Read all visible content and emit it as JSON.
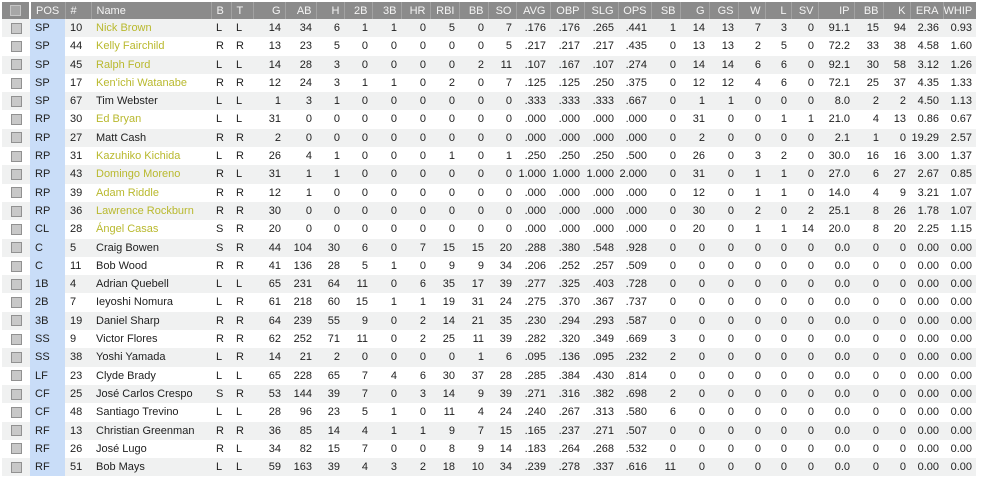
{
  "colors": {
    "header_bg": "#8b8b8b",
    "header_text": "#f4f4f4",
    "pos_column_bg": "#c9ddf8",
    "row_alt_bg": "#f0f1f1",
    "name_highlight_yellow": "#b9b92e"
  },
  "table": {
    "columns": [
      {
        "key": "sel",
        "label": "",
        "align": "center",
        "width": 28,
        "type": "checkbox"
      },
      {
        "key": "pos",
        "label": "POS",
        "align": "left",
        "width": 35
      },
      {
        "key": "num",
        "label": "#",
        "align": "left",
        "width": 26
      },
      {
        "key": "name",
        "label": "Name",
        "align": "left",
        "width": 120
      },
      {
        "key": "b",
        "label": "B",
        "align": "left",
        "width": 20
      },
      {
        "key": "t",
        "label": "T",
        "align": "left",
        "width": 22
      },
      {
        "key": "g",
        "label": "G",
        "align": "right",
        "width": 32
      },
      {
        "key": "ab",
        "label": "AB",
        "align": "right",
        "width": 31
      },
      {
        "key": "h",
        "label": "H",
        "align": "right",
        "width": 28
      },
      {
        "key": "2b",
        "label": "2B",
        "align": "right",
        "width": 28
      },
      {
        "key": "3b",
        "label": "3B",
        "align": "right",
        "width": 29
      },
      {
        "key": "hr",
        "label": "HR",
        "align": "right",
        "width": 29
      },
      {
        "key": "rbi",
        "label": "RBI",
        "align": "right",
        "width": 29
      },
      {
        "key": "bb",
        "label": "BB",
        "align": "right",
        "width": 29
      },
      {
        "key": "so",
        "label": "SO",
        "align": "right",
        "width": 28
      },
      {
        "key": "avg",
        "label": "AVG",
        "align": "right",
        "width": 34
      },
      {
        "key": "obp",
        "label": "OBP",
        "align": "right",
        "width": 34
      },
      {
        "key": "slg",
        "label": "SLG",
        "align": "right",
        "width": 34
      },
      {
        "key": "ops",
        "label": "OPS",
        "align": "right",
        "width": 33
      },
      {
        "key": "sb",
        "label": "SB",
        "align": "right",
        "width": 29
      },
      {
        "key": "g2",
        "label": "G",
        "align": "right",
        "width": 29
      },
      {
        "key": "gs",
        "label": "GS",
        "align": "right",
        "width": 29
      },
      {
        "key": "w",
        "label": "W",
        "align": "right",
        "width": 27
      },
      {
        "key": "l",
        "label": "L",
        "align": "right",
        "width": 26
      },
      {
        "key": "sv",
        "label": "SV",
        "align": "right",
        "width": 27
      },
      {
        "key": "ip",
        "label": "IP",
        "align": "right",
        "width": 36
      },
      {
        "key": "bb2",
        "label": "BB",
        "align": "right",
        "width": 29
      },
      {
        "key": "k",
        "label": "K",
        "align": "right",
        "width": 27
      },
      {
        "key": "era",
        "label": "ERA",
        "align": "right",
        "width": 33
      },
      {
        "key": "whip",
        "label": "WHIP",
        "align": "right",
        "width": 33
      }
    ],
    "rows": [
      {
        "pos": "SP",
        "num": "10",
        "name": "Nick Brown",
        "highlighted": true,
        "stats": [
          "L",
          "L",
          "14",
          "34",
          "6",
          "1",
          "1",
          "0",
          "5",
          "0",
          "7",
          ".176",
          ".176",
          ".265",
          ".441",
          "1",
          "14",
          "13",
          "7",
          "3",
          "0",
          "91.1",
          "15",
          "94",
          "2.36",
          "0.93"
        ]
      },
      {
        "pos": "SP",
        "num": "44",
        "name": "Kelly Fairchild",
        "highlighted": true,
        "stats": [
          "R",
          "R",
          "13",
          "23",
          "5",
          "0",
          "0",
          "0",
          "0",
          "0",
          "5",
          ".217",
          ".217",
          ".217",
          ".435",
          "0",
          "13",
          "13",
          "2",
          "5",
          "0",
          "72.2",
          "33",
          "38",
          "4.58",
          "1.60"
        ]
      },
      {
        "pos": "SP",
        "num": "45",
        "name": "Ralph Ford",
        "highlighted": true,
        "stats": [
          "L",
          "L",
          "14",
          "28",
          "3",
          "0",
          "0",
          "0",
          "0",
          "2",
          "11",
          ".107",
          ".167",
          ".107",
          ".274",
          "0",
          "14",
          "14",
          "6",
          "6",
          "0",
          "92.1",
          "30",
          "58",
          "3.12",
          "1.26"
        ]
      },
      {
        "pos": "SP",
        "num": "17",
        "name": "Ken'ichi Watanabe",
        "highlighted": true,
        "stats": [
          "R",
          "R",
          "12",
          "24",
          "3",
          "1",
          "1",
          "0",
          "2",
          "0",
          "7",
          ".125",
          ".125",
          ".250",
          ".375",
          "0",
          "12",
          "12",
          "4",
          "6",
          "0",
          "72.1",
          "25",
          "37",
          "4.35",
          "1.33"
        ]
      },
      {
        "pos": "SP",
        "num": "67",
        "name": "Tim Webster",
        "highlighted": false,
        "stats": [
          "L",
          "L",
          "1",
          "3",
          "1",
          "0",
          "0",
          "0",
          "0",
          "0",
          "0",
          ".333",
          ".333",
          ".333",
          ".667",
          "0",
          "1",
          "1",
          "0",
          "0",
          "0",
          "8.0",
          "2",
          "2",
          "4.50",
          "1.13"
        ]
      },
      {
        "pos": "RP",
        "num": "30",
        "name": "Ed Bryan",
        "highlighted": true,
        "stats": [
          "L",
          "L",
          "31",
          "0",
          "0",
          "0",
          "0",
          "0",
          "0",
          "0",
          "0",
          ".000",
          ".000",
          ".000",
          ".000",
          "0",
          "31",
          "0",
          "0",
          "1",
          "1",
          "21.0",
          "4",
          "13",
          "0.86",
          "0.67"
        ]
      },
      {
        "pos": "RP",
        "num": "27",
        "name": "Matt Cash",
        "highlighted": false,
        "stats": [
          "R",
          "R",
          "2",
          "0",
          "0",
          "0",
          "0",
          "0",
          "0",
          "0",
          "0",
          ".000",
          ".000",
          ".000",
          ".000",
          "0",
          "2",
          "0",
          "0",
          "0",
          "0",
          "2.1",
          "1",
          "0",
          "19.29",
          "2.57"
        ]
      },
      {
        "pos": "RP",
        "num": "31",
        "name": "Kazuhiko Kichida",
        "highlighted": true,
        "stats": [
          "L",
          "R",
          "26",
          "4",
          "1",
          "0",
          "0",
          "0",
          "1",
          "0",
          "1",
          ".250",
          ".250",
          ".250",
          ".500",
          "0",
          "26",
          "0",
          "3",
          "2",
          "0",
          "30.0",
          "16",
          "16",
          "3.00",
          "1.37"
        ]
      },
      {
        "pos": "RP",
        "num": "43",
        "name": "Domingo Moreno",
        "highlighted": true,
        "stats": [
          "R",
          "L",
          "31",
          "1",
          "1",
          "0",
          "0",
          "0",
          "0",
          "0",
          "0",
          "1.000",
          "1.000",
          "1.000",
          "2.000",
          "0",
          "31",
          "0",
          "1",
          "1",
          "0",
          "27.0",
          "6",
          "27",
          "2.67",
          "0.85"
        ]
      },
      {
        "pos": "RP",
        "num": "39",
        "name": "Adam Riddle",
        "highlighted": true,
        "stats": [
          "R",
          "R",
          "12",
          "1",
          "0",
          "0",
          "0",
          "0",
          "0",
          "0",
          "0",
          ".000",
          ".000",
          ".000",
          ".000",
          "0",
          "12",
          "0",
          "1",
          "1",
          "0",
          "14.0",
          "4",
          "9",
          "3.21",
          "1.07"
        ]
      },
      {
        "pos": "RP",
        "num": "36",
        "name": "Lawrence Rockburn",
        "highlighted": true,
        "stats": [
          "R",
          "R",
          "30",
          "0",
          "0",
          "0",
          "0",
          "0",
          "0",
          "0",
          "0",
          ".000",
          ".000",
          ".000",
          ".000",
          "0",
          "30",
          "0",
          "2",
          "0",
          "2",
          "25.1",
          "8",
          "26",
          "1.78",
          "1.07"
        ]
      },
      {
        "pos": "CL",
        "num": "28",
        "name": "Ángel Casas",
        "highlighted": true,
        "stats": [
          "S",
          "R",
          "20",
          "0",
          "0",
          "0",
          "0",
          "0",
          "0",
          "0",
          "0",
          ".000",
          ".000",
          ".000",
          ".000",
          "0",
          "20",
          "0",
          "1",
          "1",
          "14",
          "20.0",
          "8",
          "20",
          "2.25",
          "1.15"
        ]
      },
      {
        "pos": "C",
        "num": "5",
        "name": "Craig Bowen",
        "highlighted": false,
        "stats": [
          "S",
          "R",
          "44",
          "104",
          "30",
          "6",
          "0",
          "7",
          "15",
          "15",
          "20",
          ".288",
          ".380",
          ".548",
          ".928",
          "0",
          "0",
          "0",
          "0",
          "0",
          "0",
          "0.0",
          "0",
          "0",
          "0.00",
          "0.00"
        ]
      },
      {
        "pos": "C",
        "num": "11",
        "name": "Bob Wood",
        "highlighted": false,
        "stats": [
          "R",
          "R",
          "41",
          "136",
          "28",
          "5",
          "1",
          "0",
          "9",
          "9",
          "34",
          ".206",
          ".252",
          ".257",
          ".509",
          "0",
          "0",
          "0",
          "0",
          "0",
          "0",
          "0.0",
          "0",
          "0",
          "0.00",
          "0.00"
        ]
      },
      {
        "pos": "1B",
        "num": "4",
        "name": "Adrian Quebell",
        "highlighted": false,
        "stats": [
          "L",
          "L",
          "65",
          "231",
          "64",
          "11",
          "0",
          "6",
          "35",
          "17",
          "39",
          ".277",
          ".325",
          ".403",
          ".728",
          "0",
          "0",
          "0",
          "0",
          "0",
          "0",
          "0.0",
          "0",
          "0",
          "0.00",
          "0.00"
        ]
      },
      {
        "pos": "2B",
        "num": "7",
        "name": "Ieyoshi Nomura",
        "highlighted": false,
        "stats": [
          "L",
          "R",
          "61",
          "218",
          "60",
          "15",
          "1",
          "1",
          "19",
          "31",
          "24",
          ".275",
          ".370",
          ".367",
          ".737",
          "0",
          "0",
          "0",
          "0",
          "0",
          "0",
          "0.0",
          "0",
          "0",
          "0.00",
          "0.00"
        ]
      },
      {
        "pos": "3B",
        "num": "19",
        "name": "Daniel Sharp",
        "highlighted": false,
        "stats": [
          "R",
          "R",
          "64",
          "239",
          "55",
          "9",
          "0",
          "2",
          "14",
          "21",
          "35",
          ".230",
          ".294",
          ".293",
          ".587",
          "0",
          "0",
          "0",
          "0",
          "0",
          "0",
          "0.0",
          "0",
          "0",
          "0.00",
          "0.00"
        ]
      },
      {
        "pos": "SS",
        "num": "9",
        "name": "Victor Flores",
        "highlighted": false,
        "stats": [
          "R",
          "R",
          "62",
          "252",
          "71",
          "11",
          "0",
          "2",
          "25",
          "11",
          "39",
          ".282",
          ".320",
          ".349",
          ".669",
          "3",
          "0",
          "0",
          "0",
          "0",
          "0",
          "0.0",
          "0",
          "0",
          "0.00",
          "0.00"
        ]
      },
      {
        "pos": "SS",
        "num": "38",
        "name": "Yoshi Yamada",
        "highlighted": false,
        "stats": [
          "L",
          "R",
          "14",
          "21",
          "2",
          "0",
          "0",
          "0",
          "0",
          "1",
          "6",
          ".095",
          ".136",
          ".095",
          ".232",
          "2",
          "0",
          "0",
          "0",
          "0",
          "0",
          "0.0",
          "0",
          "0",
          "0.00",
          "0.00"
        ]
      },
      {
        "pos": "LF",
        "num": "23",
        "name": "Clyde Brady",
        "highlighted": false,
        "stats": [
          "L",
          "L",
          "65",
          "228",
          "65",
          "7",
          "4",
          "6",
          "30",
          "37",
          "28",
          ".285",
          ".384",
          ".430",
          ".814",
          "0",
          "0",
          "0",
          "0",
          "0",
          "0",
          "0.0",
          "0",
          "0",
          "0.00",
          "0.00"
        ]
      },
      {
        "pos": "CF",
        "num": "25",
        "name": "José Carlos Crespo",
        "highlighted": false,
        "stats": [
          "S",
          "R",
          "53",
          "144",
          "39",
          "7",
          "0",
          "3",
          "14",
          "9",
          "39",
          ".271",
          ".316",
          ".382",
          ".698",
          "2",
          "0",
          "0",
          "0",
          "0",
          "0",
          "0.0",
          "0",
          "0",
          "0.00",
          "0.00"
        ]
      },
      {
        "pos": "CF",
        "num": "48",
        "name": "Santiago Trevino",
        "highlighted": false,
        "stats": [
          "L",
          "L",
          "28",
          "96",
          "23",
          "5",
          "1",
          "0",
          "11",
          "4",
          "24",
          ".240",
          ".267",
          ".313",
          ".580",
          "6",
          "0",
          "0",
          "0",
          "0",
          "0",
          "0.0",
          "0",
          "0",
          "0.00",
          "0.00"
        ]
      },
      {
        "pos": "RF",
        "num": "13",
        "name": "Christian Greenman",
        "highlighted": false,
        "stats": [
          "R",
          "R",
          "36",
          "85",
          "14",
          "4",
          "1",
          "1",
          "9",
          "7",
          "15",
          ".165",
          ".237",
          ".271",
          ".507",
          "0",
          "0",
          "0",
          "0",
          "0",
          "0",
          "0.0",
          "0",
          "0",
          "0.00",
          "0.00"
        ]
      },
      {
        "pos": "RF",
        "num": "26",
        "name": "José Lugo",
        "highlighted": false,
        "stats": [
          "R",
          "L",
          "34",
          "82",
          "15",
          "7",
          "0",
          "0",
          "8",
          "9",
          "14",
          ".183",
          ".264",
          ".268",
          ".532",
          "0",
          "0",
          "0",
          "0",
          "0",
          "0",
          "0.0",
          "0",
          "0",
          "0.00",
          "0.00"
        ]
      },
      {
        "pos": "RF",
        "num": "51",
        "name": "Bob Mays",
        "highlighted": false,
        "stats": [
          "L",
          "L",
          "59",
          "163",
          "39",
          "4",
          "3",
          "2",
          "18",
          "10",
          "34",
          ".239",
          ".278",
          ".337",
          ".616",
          "11",
          "0",
          "0",
          "0",
          "0",
          "0",
          "0.0",
          "0",
          "0",
          "0.00",
          "0.00"
        ]
      }
    ]
  }
}
